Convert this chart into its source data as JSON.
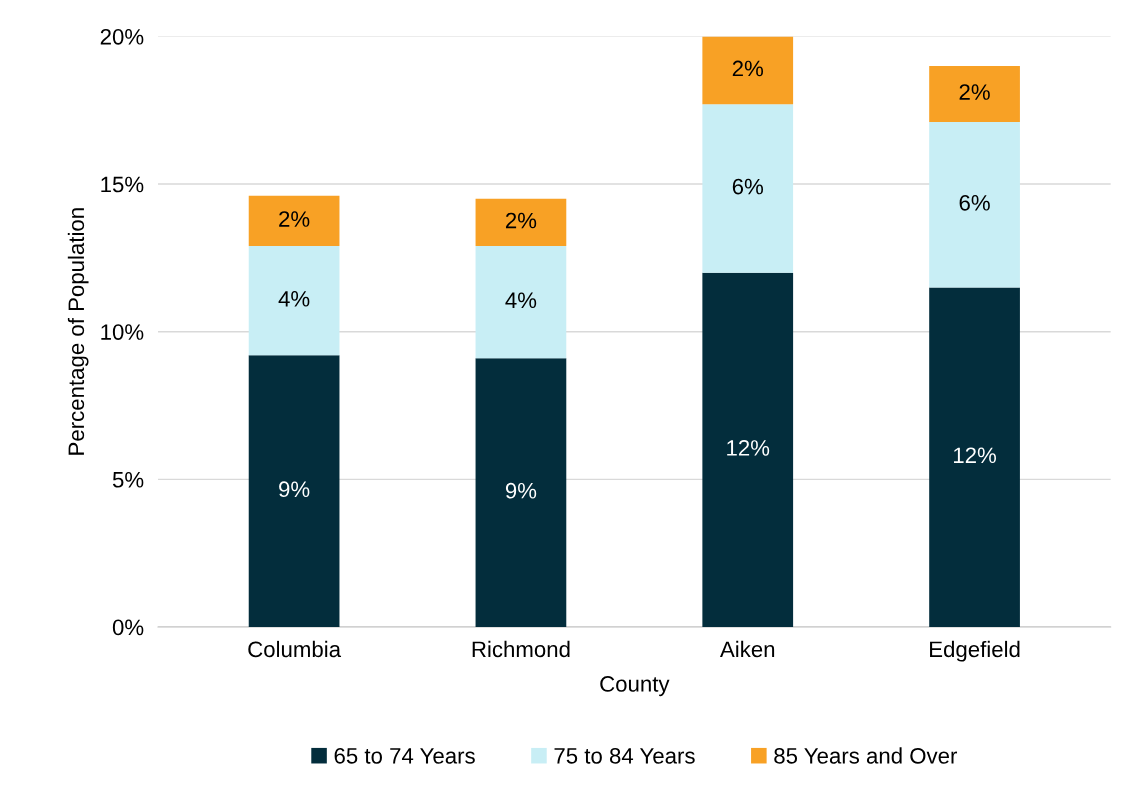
{
  "chart_data": {
    "type": "bar",
    "stacked": true,
    "xlabel": "County",
    "ylabel": "Percentage of Population",
    "categories": [
      "Columbia",
      "Richmond",
      "Aiken",
      "Edgefield"
    ],
    "series": [
      {
        "name": "65 to 74 Years",
        "color": "#032d3c",
        "values": [
          9.2,
          9.1,
          12.0,
          11.5
        ],
        "value_labels": [
          "9%",
          "9%",
          "12%",
          "12%"
        ]
      },
      {
        "name": "75 to 84 Years",
        "color": "#c8eef5",
        "values": [
          3.7,
          3.8,
          5.7,
          5.6
        ],
        "value_labels": [
          "4%",
          "4%",
          "6%",
          "6%"
        ]
      },
      {
        "name": "85 Years and Over",
        "color": "#f8a125",
        "values": [
          1.7,
          1.6,
          2.3,
          1.9
        ],
        "value_labels": [
          "2%",
          "2%",
          "2%",
          "2%"
        ]
      }
    ],
    "ylim": [
      0,
      20
    ],
    "yticks": [
      {
        "value": 0,
        "label": "0%"
      },
      {
        "value": 5,
        "label": "5%"
      },
      {
        "value": 10,
        "label": "10%"
      },
      {
        "value": 15,
        "label": "15%"
      },
      {
        "value": 20,
        "label": "20%"
      }
    ],
    "grid": "y",
    "legend": "bottom"
  }
}
